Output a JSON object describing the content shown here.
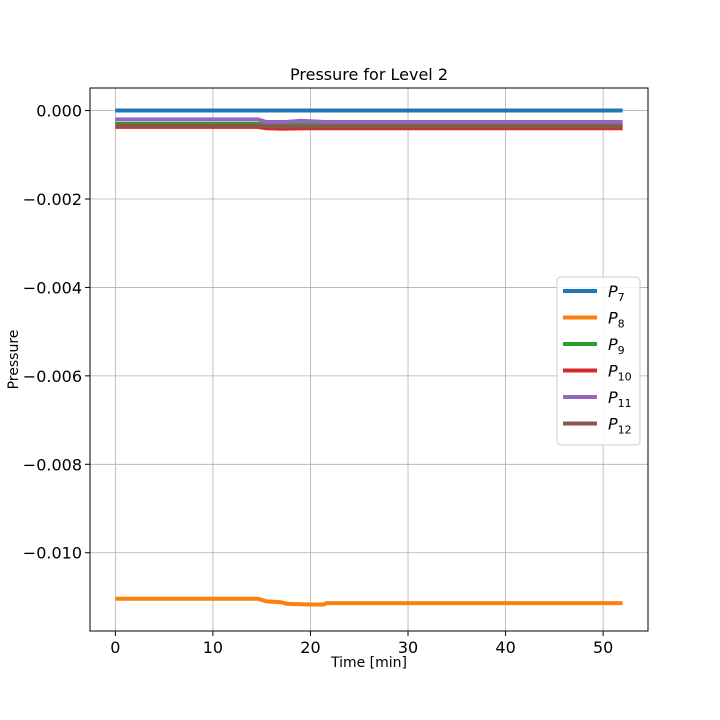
{
  "chart_data": {
    "type": "line",
    "title": "Pressure for Level 2",
    "xlabel": "Time [min]",
    "ylabel": "Pressure",
    "xlim": [
      -2.6,
      54.6
    ],
    "ylim": [
      -0.01177,
      0.00051
    ],
    "xticks": [
      0,
      10,
      20,
      30,
      40,
      50
    ],
    "xtick_labels": [
      "0",
      "10",
      "20",
      "30",
      "40",
      "50"
    ],
    "yticks": [
      0.0,
      -0.002,
      -0.004,
      -0.006,
      -0.008,
      -0.01
    ],
    "ytick_labels": [
      "0.000",
      "−0.002",
      "−0.004",
      "−0.006",
      "−0.008",
      "−0.010"
    ],
    "grid": true,
    "legend_position": "center-right",
    "series": [
      {
        "name": "P",
        "subscript": "7",
        "color": "#1f77b4",
        "x": [
          0,
          15,
          20,
          30,
          40,
          52
        ],
        "y": [
          0.0,
          0.0,
          0.0,
          0.0,
          0.0,
          0.0
        ]
      },
      {
        "name": "P",
        "subscript": "8",
        "color": "#ff7f0e",
        "x": [
          0,
          10,
          14.6,
          15.5,
          17,
          17.5,
          18,
          20,
          21.4,
          21.6,
          30,
          40,
          52
        ],
        "y": [
          -0.01104,
          -0.01104,
          -0.01104,
          -0.0111,
          -0.01112,
          -0.01115,
          -0.01116,
          -0.01117,
          -0.01117,
          -0.01114,
          -0.01114,
          -0.01114,
          -0.01114
        ]
      },
      {
        "name": "P",
        "subscript": "9",
        "color": "#2ca02c",
        "x": [
          0,
          14.6,
          15.5,
          20,
          30,
          52
        ],
        "y": [
          -0.0003,
          -0.0003,
          -0.00032,
          -0.00032,
          -0.00032,
          -0.00032
        ]
      },
      {
        "name": "P",
        "subscript": "10",
        "color": "#d62728",
        "x": [
          0,
          14.6,
          15.5,
          17,
          20,
          21.5,
          30,
          52
        ],
        "y": [
          -0.00037,
          -0.00037,
          -0.0004,
          -0.00041,
          -0.0004,
          -0.0004,
          -0.0004,
          -0.0004
        ]
      },
      {
        "name": "P",
        "subscript": "11",
        "color": "#9467bd",
        "x": [
          0,
          14.6,
          15.5,
          17.5,
          19,
          21.5,
          30,
          52
        ],
        "y": [
          -0.0002,
          -0.0002,
          -0.00026,
          -0.00026,
          -0.00023,
          -0.00026,
          -0.00026,
          -0.00026
        ]
      },
      {
        "name": "P",
        "subscript": "12",
        "color": "#8c564b",
        "x": [
          0,
          14.6,
          15.5,
          20,
          30,
          52
        ],
        "y": [
          -0.00034,
          -0.00034,
          -0.00036,
          -0.00036,
          -0.00036,
          -0.00036
        ]
      }
    ]
  }
}
